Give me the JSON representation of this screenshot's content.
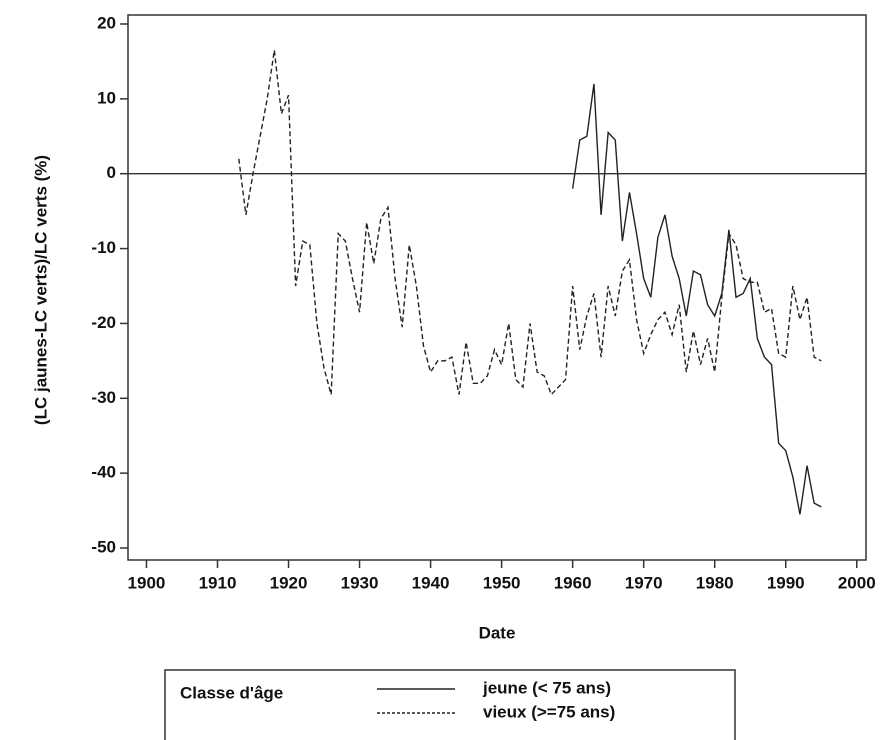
{
  "chart_data": {
    "type": "line",
    "x_label": "Date",
    "y_label": "(LC jaunes-LC verts)/LC verts (%)",
    "x": [
      1913,
      1914,
      1915,
      1916,
      1917,
      1918,
      1919,
      1920,
      1921,
      1922,
      1923,
      1924,
      1925,
      1926,
      1927,
      1928,
      1929,
      1930,
      1931,
      1932,
      1933,
      1934,
      1935,
      1936,
      1937,
      1938,
      1939,
      1940,
      1941,
      1942,
      1943,
      1944,
      1945,
      1946,
      1947,
      1948,
      1949,
      1950,
      1951,
      1952,
      1953,
      1954,
      1955,
      1956,
      1957,
      1958,
      1959,
      1960,
      1961,
      1962,
      1963,
      1964,
      1965,
      1966,
      1967,
      1968,
      1969,
      1970,
      1971,
      1972,
      1973,
      1974,
      1975,
      1976,
      1977,
      1978,
      1979,
      1980,
      1981,
      1982,
      1983,
      1984,
      1985,
      1986,
      1987,
      1988,
      1989,
      1990,
      1991,
      1992,
      1993,
      1994,
      1995
    ],
    "series": [
      {
        "name": "jeune (< 75 ans)",
        "color": "#222222",
        "dash": "none",
        "values": [
          null,
          null,
          null,
          null,
          null,
          null,
          null,
          null,
          null,
          null,
          null,
          null,
          null,
          null,
          null,
          null,
          null,
          null,
          null,
          null,
          null,
          null,
          null,
          null,
          null,
          null,
          null,
          null,
          null,
          null,
          null,
          null,
          null,
          null,
          null,
          null,
          null,
          null,
          null,
          null,
          null,
          null,
          null,
          null,
          null,
          null,
          null,
          -2,
          4.5,
          5,
          12,
          -5.5,
          5.5,
          4.5,
          -9,
          -2.5,
          -8,
          -14,
          -16.5,
          -8.5,
          -5.5,
          -11,
          -14,
          -19,
          -13,
          -13.5,
          -17.5,
          -19,
          -16,
          -7.5,
          -16.5,
          -16,
          -14,
          -22,
          -24.5,
          -25.5,
          -36,
          -37,
          -40.5,
          -45.5,
          -39,
          -44,
          -44.5
        ]
      },
      {
        "name": "vieux (>=75 ans)",
        "color": "#222222",
        "dash": "5,3",
        "values": [
          2,
          -5.5,
          0,
          5,
          10,
          16.5,
          8,
          10.5,
          -15,
          -9,
          -9.5,
          -20,
          -26,
          -29.5,
          -8,
          -9,
          -14,
          -18.5,
          -6.5,
          -12,
          -6,
          -4.5,
          -14,
          -20.5,
          -9.5,
          -15,
          -23,
          -26.5,
          -25,
          -25,
          -24.5,
          -29.5,
          -22.5,
          -28,
          -28,
          -27,
          -23.5,
          -25.5,
          -20,
          -27.5,
          -28.5,
          -20,
          -26.5,
          -27,
          -29.5,
          -28.5,
          -27.5,
          -15,
          -23.5,
          -19,
          -16,
          -24.5,
          -15,
          -19,
          -13,
          -11.5,
          -19.5,
          -24,
          -21.5,
          -19.5,
          -18.5,
          -21.5,
          -17.5,
          -26.5,
          -21,
          -25.5,
          -22,
          -26.5,
          -16.5,
          -8,
          -9.5,
          -14,
          -14.5,
          -14.5,
          -18.5,
          -18,
          -24,
          -24.5,
          -15,
          -19.5,
          -16.5,
          -24.5,
          -25
        ]
      }
    ],
    "legend_title": "Classe d'âge",
    "legend_position": "bottom",
    "hline": 0,
    "xlim": [
      1897.4,
      2001.3
    ],
    "xticks": [
      1900,
      1910,
      1920,
      1930,
      1940,
      1950,
      1960,
      1970,
      1980,
      1990,
      2000
    ],
    "ylim": [
      -51.6,
      21.2
    ],
    "yticks": [
      -50,
      -40,
      -30,
      -20,
      -10,
      0,
      10,
      20
    ]
  }
}
